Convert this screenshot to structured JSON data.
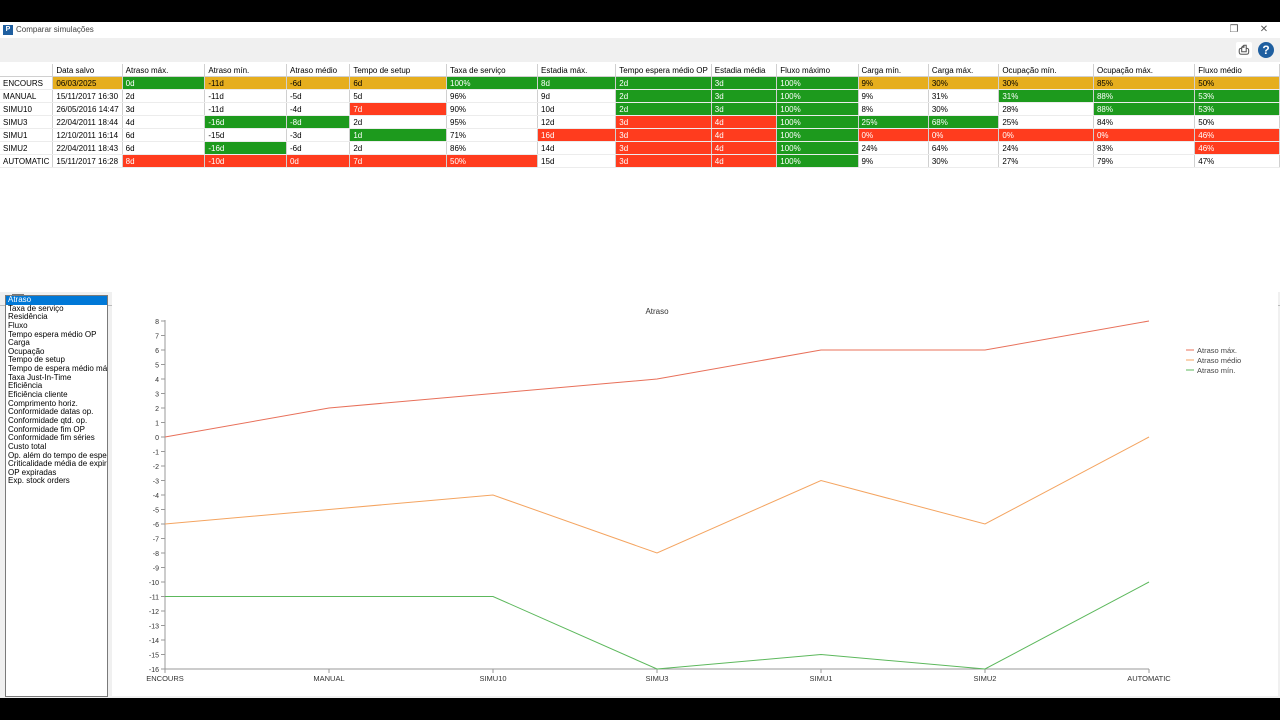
{
  "window": {
    "title": "Comparar simulações",
    "icon_letter": "P"
  },
  "toolbar": {
    "print_icon": "printer-icon",
    "help_icon": "help-icon"
  },
  "grid": {
    "columns": [
      "",
      "Data salvo",
      "Atraso máx.",
      "Atraso mín.",
      "Atraso médio",
      "Tempo de setup",
      "Taxa de serviço",
      "Estadia máx.",
      "Tempo espera médio OP",
      "Estadia média",
      "Fluxo máximo",
      "Carga mín.",
      "Carga máx.",
      "Ocupação mín.",
      "Ocupação máx.",
      "Fluxo médio"
    ],
    "rows": [
      {
        "cells": [
          "ENCOURS",
          "06/03/2025",
          "0d",
          "-11d",
          "-6d",
          "6d",
          "100%",
          "8d",
          "2d",
          "3d",
          "100%",
          "9%",
          "30%",
          "30%",
          "85%",
          "50%"
        ],
        "colors": [
          "",
          "o",
          "g",
          "o",
          "o",
          "o",
          "g",
          "g",
          "g",
          "g",
          "g",
          "o",
          "o",
          "o",
          "o",
          "o"
        ]
      },
      {
        "cells": [
          "MANUAL",
          "15/11/2017 16:30",
          "2d",
          "-11d",
          "-5d",
          "5d",
          "96%",
          "9d",
          "2d",
          "3d",
          "100%",
          "9%",
          "31%",
          "31%",
          "88%",
          "53%"
        ],
        "colors": [
          "",
          "",
          "",
          "",
          "",
          "",
          "",
          "",
          "g",
          "g",
          "g",
          "",
          "",
          "g",
          "g",
          "g"
        ]
      },
      {
        "cells": [
          "SIMU10",
          "26/05/2016 14:47",
          "3d",
          "-11d",
          "-4d",
          "7d",
          "90%",
          "10d",
          "2d",
          "3d",
          "100%",
          "8%",
          "30%",
          "28%",
          "88%",
          "53%"
        ],
        "colors": [
          "",
          "",
          "",
          "",
          "",
          "r",
          "",
          "",
          "g",
          "g",
          "g",
          "",
          "",
          "",
          "g",
          "g"
        ]
      },
      {
        "cells": [
          "SIMU3",
          "22/04/2011 18:44",
          "4d",
          "-16d",
          "-8d",
          "2d",
          "95%",
          "12d",
          "3d",
          "4d",
          "100%",
          "25%",
          "68%",
          "25%",
          "84%",
          "50%"
        ],
        "colors": [
          "",
          "",
          "",
          "g",
          "g",
          "",
          "",
          "",
          "r",
          "r",
          "g",
          "g",
          "g",
          "",
          "",
          ""
        ]
      },
      {
        "cells": [
          "SIMU1",
          "12/10/2011 16:14",
          "6d",
          "-15d",
          "-3d",
          "1d",
          "71%",
          "16d",
          "3d",
          "4d",
          "100%",
          "0%",
          "0%",
          "0%",
          "0%",
          "46%"
        ],
        "colors": [
          "",
          "",
          "",
          "",
          "",
          "g",
          "",
          "r",
          "r",
          "r",
          "g",
          "r",
          "r",
          "r",
          "r",
          "r"
        ]
      },
      {
        "cells": [
          "SIMU2",
          "22/04/2011 18:43",
          "6d",
          "-16d",
          "-6d",
          "2d",
          "86%",
          "14d",
          "3d",
          "4d",
          "100%",
          "24%",
          "64%",
          "24%",
          "83%",
          "46%"
        ],
        "colors": [
          "",
          "",
          "",
          "g",
          "",
          "",
          "",
          "",
          "r",
          "r",
          "g",
          "",
          "",
          "",
          "",
          "r"
        ]
      },
      {
        "cells": [
          "AUTOMATIC",
          "15/11/2017 16:28",
          "8d",
          "-10d",
          "0d",
          "7d",
          "50%",
          "15d",
          "3d",
          "4d",
          "100%",
          "9%",
          "30%",
          "27%",
          "79%",
          "47%"
        ],
        "colors": [
          "",
          "",
          "r",
          "r",
          "r",
          "r",
          "r",
          "",
          "r",
          "r",
          "g",
          "",
          "",
          "",
          "",
          ""
        ]
      }
    ]
  },
  "metrics": {
    "selected": "Atraso",
    "items": [
      "Atraso",
      "Taxa de serviço",
      "Residência",
      "Fluxo",
      "Tempo espera médio OP",
      "Carga",
      "Ocupação",
      "Tempo de setup",
      "Tempo de espera médio máquina",
      "Taxa Just-In-Time",
      "Eficiência",
      "Eficiência cliente",
      "Comprimento horiz.",
      "Conformidade datas op.",
      "Conformidade qtd. op.",
      "Conformidade fim OP",
      "Conformidade fim séries",
      "Custo total",
      "Op. além do tempo de espera máximo",
      "Criticalidade média de expiração",
      "OP expiradas",
      "Exp. stock orders"
    ]
  },
  "chart_data": {
    "type": "line",
    "title": "Atraso",
    "categories": [
      "ENCOURS",
      "MANUAL",
      "SIMU10",
      "SIMU3",
      "SIMU1",
      "SIMU2",
      "AUTOMATIC"
    ],
    "ylim": [
      -16,
      8
    ],
    "yticks": [
      8,
      7,
      6,
      5,
      4,
      3,
      2,
      1,
      0,
      -1,
      -2,
      -3,
      -4,
      -5,
      -6,
      -7,
      -8,
      -9,
      -10,
      -11,
      -12,
      -13,
      -14,
      -15,
      -16
    ],
    "legend_position": "top-right",
    "series": [
      {
        "name": "Atraso máx.",
        "color": "#e8705a",
        "values": [
          0,
          2,
          3,
          4,
          6,
          6,
          8
        ]
      },
      {
        "name": "Atraso médio",
        "color": "#f4a460",
        "values": [
          -6,
          -5,
          -4,
          -8,
          -3,
          -6,
          0
        ]
      },
      {
        "name": "Atraso mín.",
        "color": "#5cb85c",
        "values": [
          -11,
          -11,
          -11,
          -16,
          -15,
          -16,
          -10
        ]
      }
    ]
  }
}
